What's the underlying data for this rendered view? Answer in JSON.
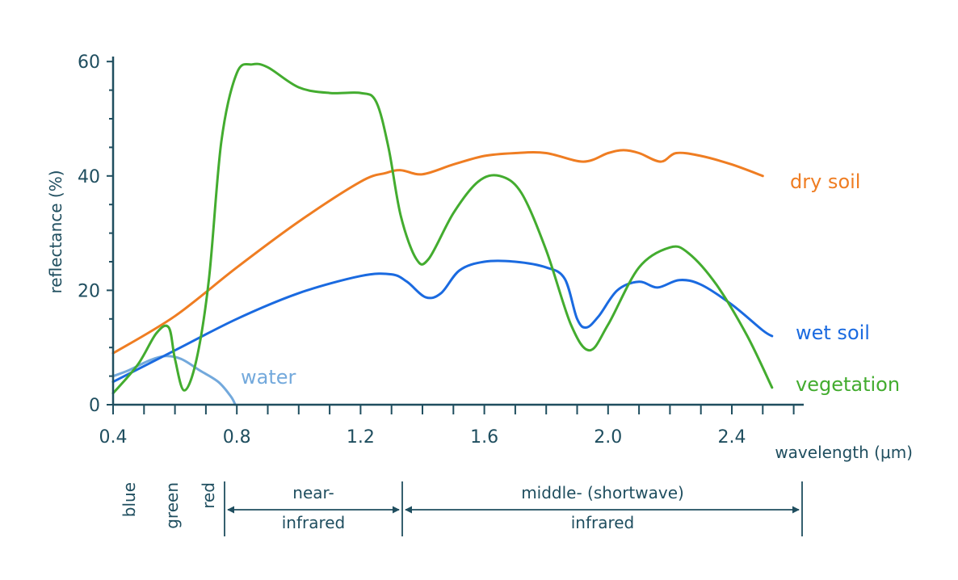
{
  "chart_data": {
    "type": "line",
    "ylabel": "reflectance (%)",
    "xlabel": "wavelength (μm)",
    "xlim": [
      0.4,
      2.6
    ],
    "ylim": [
      0,
      60
    ],
    "x_tick_labels": [
      "0.4",
      "0.8",
      "1.2",
      "1.6",
      "2.0",
      "2.4"
    ],
    "y_tick_labels": [
      "0",
      "20",
      "40",
      "60"
    ],
    "series": [
      {
        "name": "dry soil",
        "color": "#ef7d22",
        "points": [
          [
            0.4,
            9
          ],
          [
            0.6,
            15.5
          ],
          [
            0.8,
            24
          ],
          [
            1.0,
            32
          ],
          [
            1.2,
            39
          ],
          [
            1.28,
            40.5
          ],
          [
            1.33,
            41
          ],
          [
            1.4,
            40.3
          ],
          [
            1.5,
            42
          ],
          [
            1.6,
            43.5
          ],
          [
            1.7,
            44
          ],
          [
            1.8,
            44
          ],
          [
            1.92,
            42.5
          ],
          [
            2.0,
            44
          ],
          [
            2.05,
            44.5
          ],
          [
            2.1,
            44
          ],
          [
            2.17,
            42.5
          ],
          [
            2.22,
            44
          ],
          [
            2.3,
            43.5
          ],
          [
            2.4,
            42
          ],
          [
            2.5,
            40
          ]
        ]
      },
      {
        "name": "wet soil",
        "color": "#1a6ae0",
        "points": [
          [
            0.4,
            4
          ],
          [
            0.6,
            9.5
          ],
          [
            0.8,
            15
          ],
          [
            1.0,
            19.5
          ],
          [
            1.2,
            22.5
          ],
          [
            1.3,
            22.8
          ],
          [
            1.35,
            21.5
          ],
          [
            1.41,
            18.8
          ],
          [
            1.46,
            19.5
          ],
          [
            1.52,
            23.5
          ],
          [
            1.6,
            25
          ],
          [
            1.7,
            25
          ],
          [
            1.8,
            24
          ],
          [
            1.86,
            22
          ],
          [
            1.9,
            15
          ],
          [
            1.93,
            13.5
          ],
          [
            1.97,
            15.5
          ],
          [
            2.03,
            20
          ],
          [
            2.1,
            21.5
          ],
          [
            2.16,
            20.5
          ],
          [
            2.23,
            21.8
          ],
          [
            2.3,
            21
          ],
          [
            2.4,
            17.5
          ],
          [
            2.5,
            13
          ],
          [
            2.53,
            12
          ]
        ]
      },
      {
        "name": "vegetation",
        "color": "#43ac2f",
        "points": [
          [
            0.4,
            2
          ],
          [
            0.48,
            7
          ],
          [
            0.54,
            12.5
          ],
          [
            0.58,
            13.5
          ],
          [
            0.6,
            8
          ],
          [
            0.63,
            2.5
          ],
          [
            0.67,
            8
          ],
          [
            0.71,
            22
          ],
          [
            0.75,
            46
          ],
          [
            0.8,
            58
          ],
          [
            0.85,
            59.5
          ],
          [
            0.9,
            59
          ],
          [
            1.0,
            55.5
          ],
          [
            1.1,
            54.5
          ],
          [
            1.2,
            54.5
          ],
          [
            1.25,
            53
          ],
          [
            1.29,
            45
          ],
          [
            1.33,
            33
          ],
          [
            1.38,
            25.5
          ],
          [
            1.42,
            25.5
          ],
          [
            1.5,
            33.5
          ],
          [
            1.58,
            39
          ],
          [
            1.65,
            40
          ],
          [
            1.72,
            37
          ],
          [
            1.8,
            27
          ],
          [
            1.88,
            14
          ],
          [
            1.94,
            9.5
          ],
          [
            2.0,
            14
          ],
          [
            2.1,
            24
          ],
          [
            2.2,
            27.5
          ],
          [
            2.26,
            26.5
          ],
          [
            2.35,
            21
          ],
          [
            2.45,
            12
          ],
          [
            2.53,
            3
          ]
        ]
      },
      {
        "name": "water",
        "color": "#73a9dc",
        "points": [
          [
            0.4,
            5
          ],
          [
            0.45,
            6
          ],
          [
            0.52,
            7.8
          ],
          [
            0.57,
            8.5
          ],
          [
            0.62,
            8
          ],
          [
            0.68,
            6
          ],
          [
            0.74,
            4
          ],
          [
            0.78,
            1.5
          ],
          [
            0.795,
            0
          ]
        ]
      }
    ],
    "bands": [
      {
        "label": "blue",
        "color": "#73a9dc"
      },
      {
        "label": "green",
        "color": "#43ac2f"
      },
      {
        "label": "red",
        "color": "#e02f2f"
      },
      {
        "label_line1": "near-",
        "label_line2": "infrared",
        "color": "#1f4e5f"
      },
      {
        "label_line1": "middle- (shortwave)",
        "label_line2": "infrared",
        "color": "#1f4e5f"
      }
    ],
    "axis_color": "#1f4e5f"
  }
}
